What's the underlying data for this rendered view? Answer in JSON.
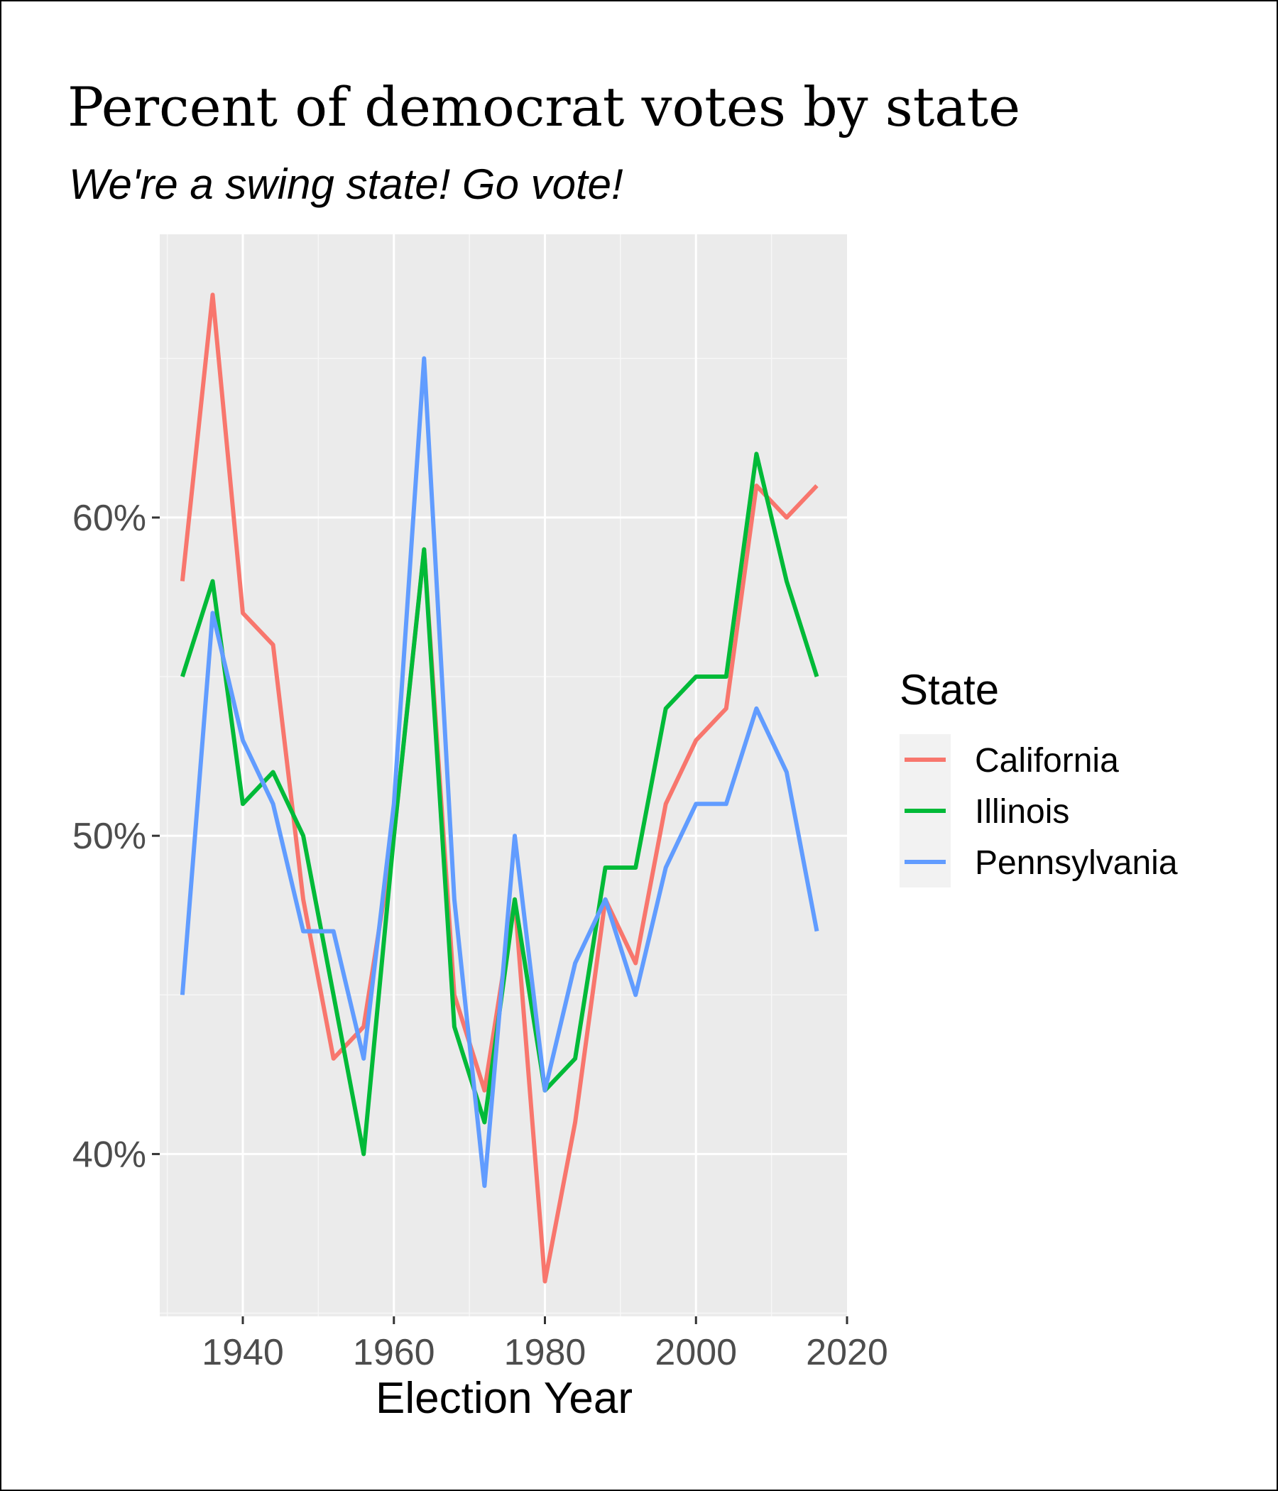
{
  "chart_data": {
    "type": "line",
    "title": "Percent of democrat votes by state",
    "subtitle": "We're a swing state! Go vote!",
    "xlabel": "Election Year",
    "ylabel": "",
    "xlim": [
      1929,
      2020
    ],
    "ylim": [
      34.9,
      68.9
    ],
    "x_ticks": [
      1940,
      1960,
      1980,
      2000,
      2020
    ],
    "x_tick_labels": [
      "1940",
      "1960",
      "1980",
      "2000",
      "2020"
    ],
    "y_ticks": [
      40,
      50,
      60
    ],
    "y_tick_labels": [
      "40%",
      "50%",
      "60%"
    ],
    "grid": true,
    "legend": {
      "title": "State",
      "position": "right"
    },
    "x": [
      1932,
      1936,
      1940,
      1944,
      1948,
      1952,
      1956,
      1960,
      1964,
      1968,
      1972,
      1976,
      1980,
      1984,
      1988,
      1992,
      1996,
      2000,
      2004,
      2008,
      2012,
      2016
    ],
    "series": [
      {
        "name": "California",
        "color": "#F8766D",
        "values": [
          58,
          67,
          57,
          56,
          48,
          43,
          44,
          50,
          59,
          45,
          42,
          48,
          36,
          41,
          48,
          46,
          51,
          53,
          54,
          61,
          60,
          61
        ]
      },
      {
        "name": "Illinois",
        "color": "#00BA38",
        "values": [
          55,
          58,
          51,
          52,
          50,
          45,
          40,
          50,
          59,
          44,
          41,
          48,
          42,
          43,
          49,
          49,
          54,
          55,
          55,
          62,
          58,
          55
        ]
      },
      {
        "name": "Pennsylvania",
        "color": "#619CFF",
        "values": [
          45,
          57,
          53,
          51,
          47,
          47,
          43,
          51,
          65,
          48,
          39,
          50,
          42,
          46,
          48,
          45,
          49,
          51,
          51,
          54,
          52,
          47
        ]
      }
    ]
  }
}
